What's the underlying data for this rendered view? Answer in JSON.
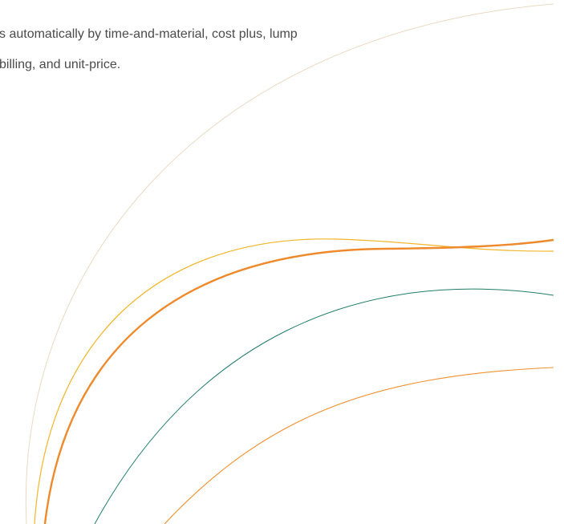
{
  "body": {
    "lines": [
      "s automatically by time-and-material, cost plus, lump",
      "billing, and unit-price."
    ]
  }
}
